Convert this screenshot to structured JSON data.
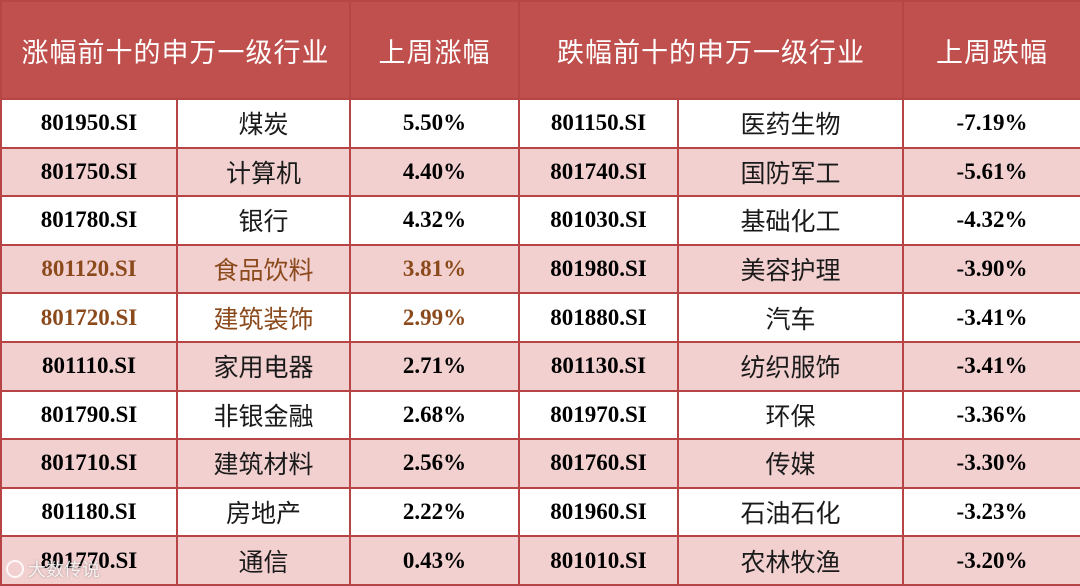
{
  "headers": [
    "涨幅前十的申万一级行业",
    "上周涨幅",
    "跌幅前十的申万一级行业",
    "上周跌幅"
  ],
  "rows": [
    {
      "up_code": "801950.SI",
      "up_name": "煤炭",
      "up_pct": "5.50%",
      "down_code": "801150.SI",
      "down_name": "医药生物",
      "down_pct": "-7.19%"
    },
    {
      "up_code": "801750.SI",
      "up_name": "计算机",
      "up_pct": "4.40%",
      "down_code": "801740.SI",
      "down_name": "国防军工",
      "down_pct": "-5.61%"
    },
    {
      "up_code": "801780.SI",
      "up_name": "银行",
      "up_pct": "4.32%",
      "down_code": "801030.SI",
      "down_name": "基础化工",
      "down_pct": "-4.32%"
    },
    {
      "up_code": "801120.SI",
      "up_name": "食品饮料",
      "up_pct": "3.81%",
      "down_code": "801980.SI",
      "down_name": "美容护理",
      "down_pct": "-3.90%"
    },
    {
      "up_code": "801720.SI",
      "up_name": "建筑装饰",
      "up_pct": "2.99%",
      "down_code": "801880.SI",
      "down_name": "汽车",
      "down_pct": "-3.41%"
    },
    {
      "up_code": "801110.SI",
      "up_name": "家用电器",
      "up_pct": "2.71%",
      "down_code": "801130.SI",
      "down_name": "纺织服饰",
      "down_pct": "-3.41%"
    },
    {
      "up_code": "801790.SI",
      "up_name": "非银金融",
      "up_pct": "2.68%",
      "down_code": "801970.SI",
      "down_name": "环保",
      "down_pct": "-3.36%"
    },
    {
      "up_code": "801710.SI",
      "up_name": "建筑材料",
      "up_pct": "2.56%",
      "down_code": "801760.SI",
      "down_name": "传媒",
      "down_pct": "-3.30%"
    },
    {
      "up_code": "801180.SI",
      "up_name": "房地产",
      "up_pct": "2.22%",
      "down_code": "801960.SI",
      "down_name": "石油石化",
      "down_pct": "-3.23%"
    },
    {
      "up_code": "801770.SI",
      "up_name": "通信",
      "up_pct": "0.43%",
      "down_code": "801010.SI",
      "down_name": "农林牧渔",
      "down_pct": "-3.20%"
    }
  ],
  "watermark": "大数传说",
  "colors": {
    "header_bg": "#c0504d",
    "alt_row_bg": "#f2d0d0",
    "border": "#b84545",
    "highlight_text": "#8b4a1c"
  }
}
